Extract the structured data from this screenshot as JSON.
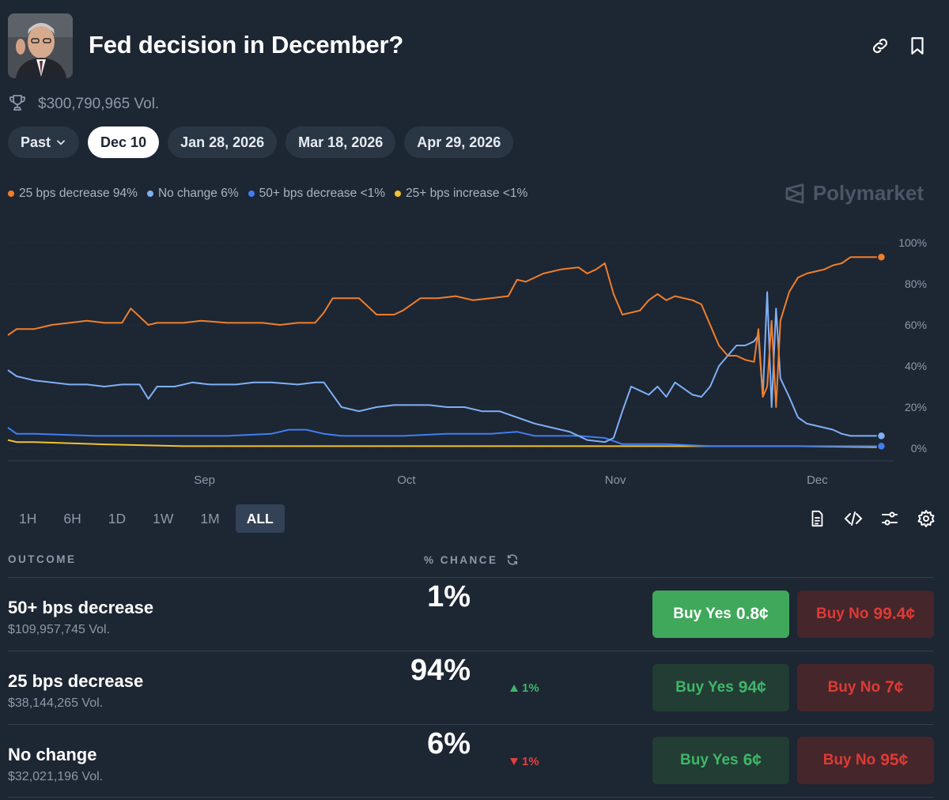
{
  "header": {
    "title": "Fed decision in December?",
    "volume": "$300,790,965 Vol."
  },
  "date_tabs": {
    "past": "Past",
    "items": [
      "Dec 10",
      "Jan 28, 2026",
      "Mar 18, 2026",
      "Apr 29, 2026"
    ],
    "active": "Dec 10"
  },
  "legend": [
    {
      "label": "25 bps decrease 94%",
      "color": "#f07f2b"
    },
    {
      "label": "No change 6%",
      "color": "#7fb0f5"
    },
    {
      "label": "50+ bps decrease <1%",
      "color": "#3f7ef0"
    },
    {
      "label": "25+ bps increase <1%",
      "color": "#f2c230"
    }
  ],
  "brand": "Polymarket",
  "chart_data": {
    "type": "line",
    "x_tick_labels": [
      "Sep",
      "Oct",
      "Nov",
      "Dec"
    ],
    "y_tick_labels": [
      "100%",
      "80%",
      "60%",
      "40%",
      "20%",
      "0%"
    ],
    "ylim": [
      0,
      100
    ],
    "x_range": [
      0,
      100
    ],
    "x_tick_positions": [
      22.4,
      45.4,
      69.2,
      92.2
    ],
    "series": [
      {
        "name": "25 bps decrease",
        "color": "#f07f2b",
        "x": [
          0,
          1,
          3,
          5,
          7,
          9,
          11,
          13,
          14,
          16,
          17,
          18,
          20,
          22,
          25,
          27,
          29,
          31,
          33,
          35,
          36,
          37,
          38,
          40,
          42,
          44,
          45,
          47,
          49,
          51,
          53,
          55,
          57,
          58,
          59,
          61,
          63,
          65,
          66,
          67,
          68,
          69,
          70,
          72,
          73,
          74,
          75,
          76,
          78,
          79,
          80,
          81,
          82,
          83,
          84,
          85,
          85.5,
          86,
          86.5,
          87,
          87.5,
          88,
          89,
          90,
          91,
          92,
          93,
          94,
          95,
          96,
          97,
          98,
          99.5
        ],
        "y": [
          55,
          58,
          58,
          60,
          61,
          62,
          61,
          61,
          68,
          60,
          61,
          61,
          61,
          62,
          61,
          61,
          61,
          60,
          61,
          61,
          66,
          73,
          73,
          73,
          65,
          65,
          67,
          73,
          73,
          74,
          72,
          73,
          74,
          82,
          81,
          85,
          87,
          88,
          85,
          87,
          90,
          75,
          65,
          67,
          72,
          75,
          72,
          74,
          72,
          70,
          60,
          50,
          45,
          45,
          43,
          42,
          58,
          25,
          30,
          62,
          20,
          62,
          76,
          83,
          85,
          86,
          87,
          89,
          90,
          93,
          93,
          93,
          93
        ]
      },
      {
        "name": "No change",
        "color": "#7fb0f5",
        "x": [
          0,
          1,
          3,
          5,
          7,
          9,
          11,
          13,
          15,
          16,
          17,
          19,
          21,
          23,
          26,
          28,
          30,
          33,
          35,
          36,
          37,
          38,
          40,
          42,
          44,
          46,
          48,
          50,
          52,
          54,
          56,
          58,
          60,
          62,
          64,
          66,
          68,
          69,
          70,
          71,
          72,
          73,
          74,
          75,
          76,
          78,
          79,
          80,
          81,
          82,
          83,
          84,
          85,
          85.5,
          86,
          86.5,
          87,
          87.5,
          88,
          89,
          90,
          91,
          92,
          93,
          94,
          95,
          96,
          97,
          98,
          99.5
        ],
        "y": [
          38,
          35,
          33,
          32,
          31,
          31,
          30,
          31,
          31,
          24,
          30,
          30,
          32,
          31,
          31,
          32,
          32,
          31,
          32,
          32,
          26,
          20,
          18,
          20,
          21,
          21,
          21,
          20,
          20,
          18,
          18,
          15,
          12,
          10,
          8,
          4,
          3,
          5,
          18,
          30,
          28,
          26,
          30,
          25,
          32,
          26,
          25,
          30,
          40,
          45,
          50,
          50,
          52,
          55,
          25,
          76,
          20,
          68,
          34,
          25,
          15,
          12,
          11,
          10,
          9,
          7,
          6,
          6,
          6,
          6
        ]
      },
      {
        "name": "50+ bps decrease",
        "color": "#3f7ef0",
        "x": [
          0,
          1,
          3,
          10,
          20,
          25,
          30,
          32,
          34,
          36,
          38,
          40,
          45,
          50,
          55,
          58,
          60,
          62,
          65,
          68,
          70,
          75,
          80,
          85,
          90,
          95,
          99.5
        ],
        "y": [
          10,
          7,
          7,
          6,
          6,
          6,
          7,
          9,
          9,
          7,
          6,
          6,
          6,
          7,
          7,
          8,
          6,
          6,
          6,
          5,
          2,
          2,
          1,
          1,
          1,
          1,
          1
        ]
      },
      {
        "name": "25+ bps increase",
        "color": "#f2c230",
        "x": [
          0,
          1,
          3,
          10,
          20,
          30,
          40,
          50,
          60,
          70,
          80,
          90,
          99.5
        ],
        "y": [
          4,
          3,
          3,
          2,
          1,
          1,
          1,
          1,
          1,
          1,
          1,
          1,
          0.5
        ]
      }
    ]
  },
  "time_ranges": {
    "items": [
      "1H",
      "6H",
      "1D",
      "1W",
      "1M",
      "ALL"
    ],
    "active": "ALL"
  },
  "table": {
    "col_outcome": "OUTCOME",
    "col_chance": "% CHANCE",
    "rows": [
      {
        "name": "50+ bps decrease",
        "volume": "$109,957,745 Vol.",
        "chance": "1%",
        "delta": "",
        "delta_dir": "",
        "buy_yes_label": "Buy Yes",
        "buy_yes_price": "0.8¢",
        "buy_no_label": "Buy No",
        "buy_no_price": "99.4¢"
      },
      {
        "name": "25 bps decrease",
        "volume": "$38,144,265 Vol.",
        "chance": "94%",
        "delta": "1%",
        "delta_dir": "up",
        "buy_yes_label": "Buy Yes",
        "buy_yes_price": "94¢",
        "buy_no_label": "Buy No",
        "buy_no_price": "7¢"
      },
      {
        "name": "No change",
        "volume": "$32,021,196 Vol.",
        "chance": "6%",
        "delta": "1%",
        "delta_dir": "down",
        "buy_yes_label": "Buy Yes",
        "buy_yes_price": "6¢",
        "buy_no_label": "Buy No",
        "buy_no_price": "95¢"
      }
    ]
  }
}
